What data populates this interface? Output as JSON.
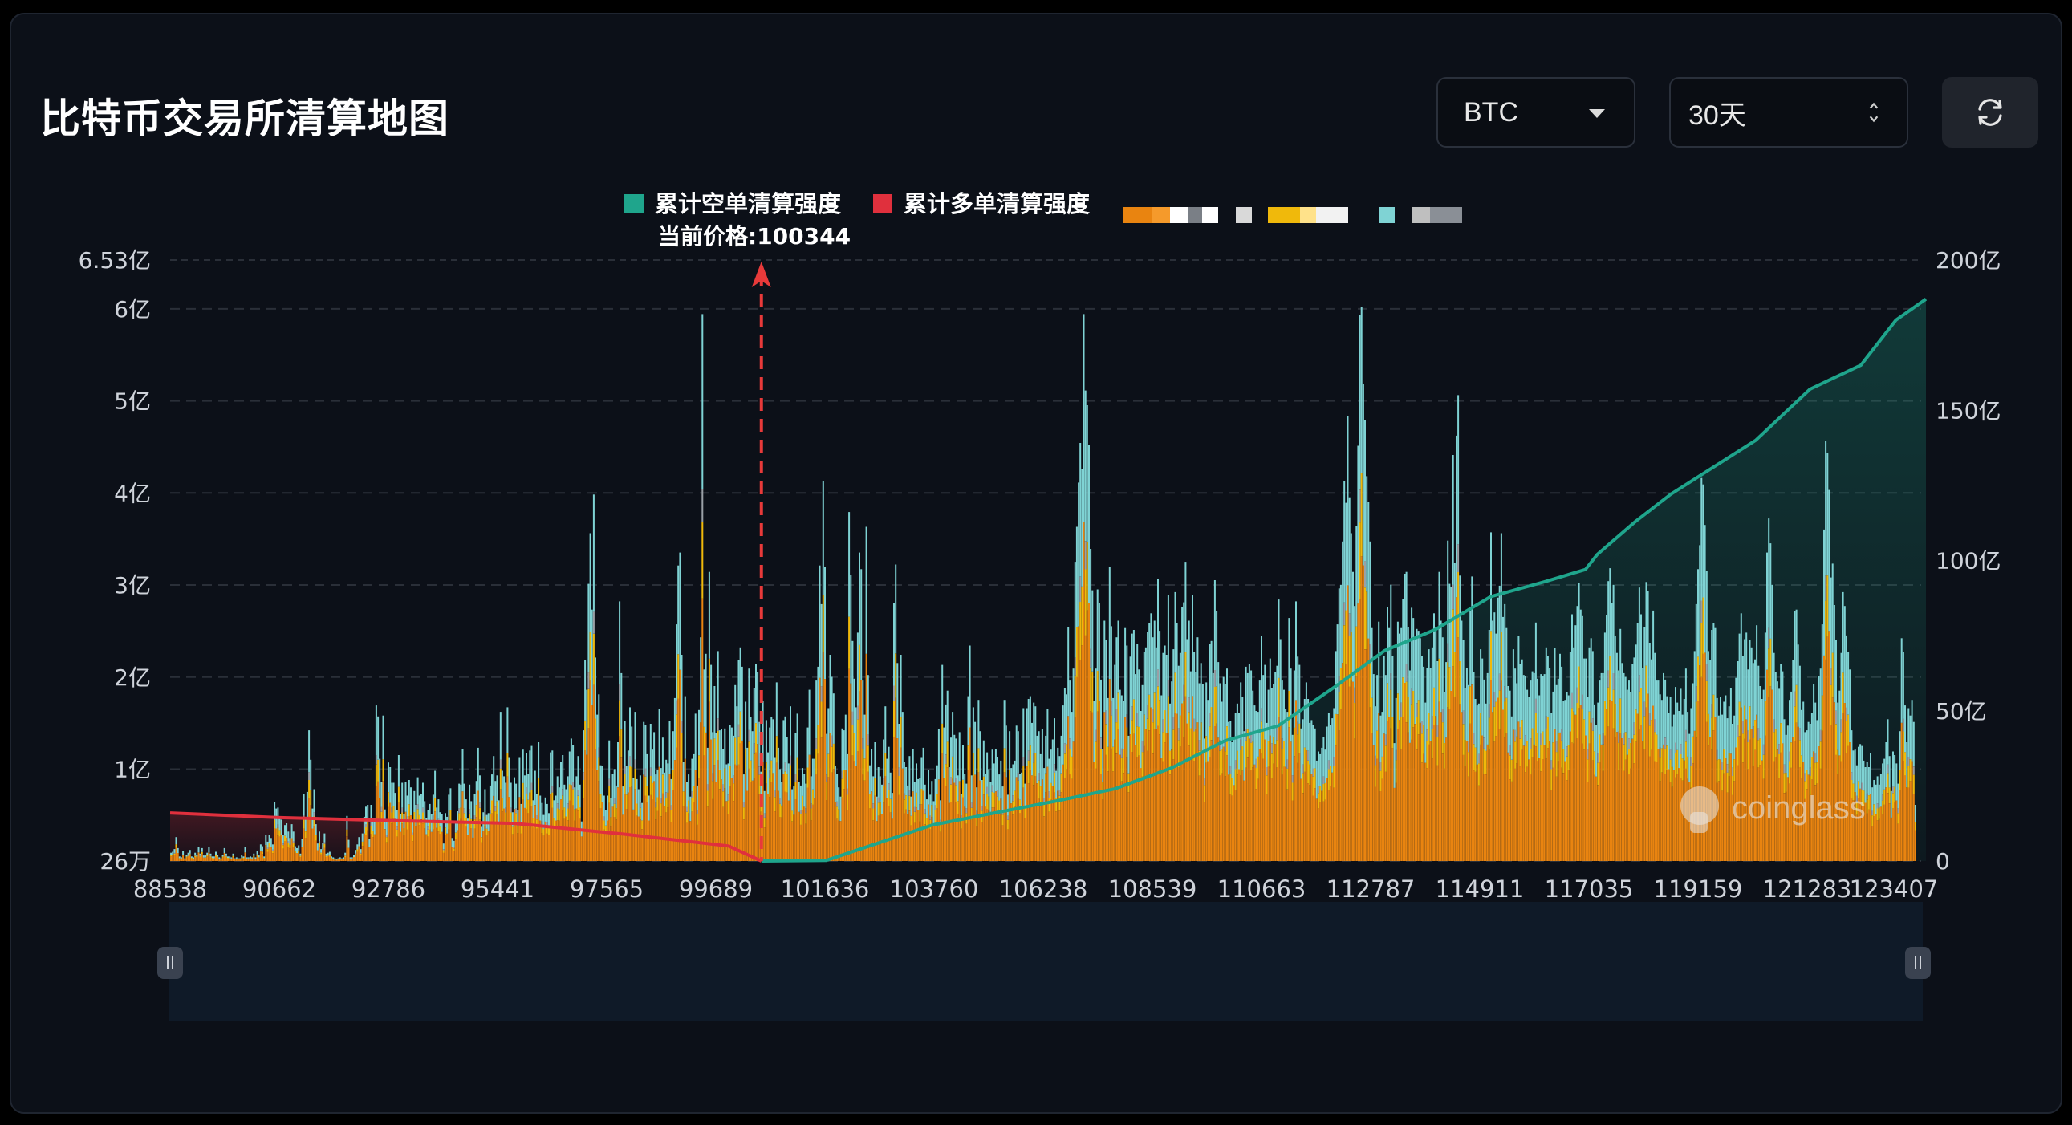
{
  "title": "比特币交易所清算地图",
  "controls": {
    "coin": "BTC",
    "range": "30天"
  },
  "icons": {
    "coin_caret": "chevron-down-icon",
    "range_spinner": "up-down-icon",
    "refresh": "refresh-icon"
  },
  "colors": {
    "background": "#0c1018",
    "short_cumulative": "#1fa58c",
    "long_cumulative": "#e0303d",
    "bar_orange": "#e98410",
    "bar_yellow": "#f0b90b",
    "bar_cyan": "#7fd3d4",
    "bar_gray": "#9aa0a6",
    "current_price_marker": "#e83a3a"
  },
  "chart_data": {
    "type": "bar",
    "legend": {
      "short_label": "累计空单清算强度",
      "long_label": "累计多单清算强度"
    },
    "current_price_label": "当前价格:100344",
    "current_price": 100344,
    "x_ticks": [
      "88538",
      "90662",
      "92786",
      "95441",
      "97565",
      "99689",
      "101636",
      "103760",
      "106238",
      "108539",
      "110663",
      "112787",
      "114911",
      "117035",
      "119159",
      "121283",
      "123407"
    ],
    "x_range": [
      88538,
      123407
    ],
    "y_left": {
      "ticks": [
        "6.53亿",
        "6亿",
        "5亿",
        "4亿",
        "3亿",
        "2亿",
        "1亿",
        "26万"
      ],
      "tick_values": [
        653000000,
        600000000,
        500000000,
        400000000,
        300000000,
        200000000,
        100000000,
        260000
      ],
      "range": [
        260000,
        653000000
      ]
    },
    "y_right": {
      "ticks": [
        "200亿",
        "150亿",
        "100亿",
        "50亿",
        "0"
      ],
      "tick_values": [
        20000000000,
        15000000000,
        10000000000,
        5000000000,
        0
      ],
      "range": [
        0,
        20000000000
      ]
    },
    "watermark": "coinglass",
    "bar_totals_yi": [
      0.09,
      0.1,
      0.13,
      0.26,
      0.14,
      0.05,
      0.04,
      0.11,
      0.03,
      0.07,
      0.09,
      0.12,
      0.05,
      0.04,
      0.09,
      0.07,
      0.15,
      0.08,
      0.14,
      0.06,
      0.06,
      0.09,
      0.15,
      0.08,
      0.05,
      0.05,
      0.1,
      0.07,
      0.04,
      0.03,
      0.07,
      0.14,
      0.08,
      0.05,
      0.05,
      0.04,
      0.08,
      0.03,
      0.04,
      0.03,
      0.03,
      0.06,
      0.05,
      0.15,
      0.04,
      0.04,
      0.05,
      0.04,
      0.08,
      0.04,
      0.11,
      0.06,
      0.18,
      0.16,
      0.05,
      0.28,
      0.21,
      0.28,
      0.25,
      0.18,
      0.64,
      0.57,
      0.58,
      0.48,
      0.45,
      0.28,
      0.39,
      0.41,
      0.32,
      0.25,
      0.4,
      0.32,
      0.16,
      0.14,
      0.17,
      0.08,
      0.24,
      0.73,
      0.46,
      0.75,
      1.42,
      1.1,
      0.57,
      0.78,
      0.4,
      0.19,
      0.32,
      0.13,
      0.2,
      0.3,
      0.08,
      0.09,
      0.1,
      0.05,
      0.04,
      0.03,
      0.02,
      0.03,
      0.04,
      0.03,
      0.04,
      0.09,
      0.49,
      0.23,
      0.04,
      0.04,
      0.07,
      0.12,
      0.18,
      0.26,
      0.13,
      0.3,
      0.48,
      0.59,
      0.61,
      0.24,
      0.61,
      0.47,
      0.47,
      1.69,
      1.57,
      1.11,
      0.86,
      1.58,
      0.56,
      0.42,
      1.07,
      1.02,
      0.85,
      0.85,
      0.74,
      0.55,
      1.15,
      0.51,
      0.85,
      0.51,
      0.86,
      0.71,
      0.88,
      0.8,
      0.45,
      0.76,
      0.61,
      0.91,
      0.71,
      0.73,
      0.85,
      0.65,
      0.47,
      0.55,
      0.62,
      0.51,
      0.72,
      0.98,
      0.58,
      0.67,
      0.53,
      0.51,
      0.19,
      0.52,
      0.48,
      0.72,
      0.79,
      0.25,
      0.22,
      0.44,
      0.54,
      0.84,
      0.83,
      1.22,
      0.84,
      0.67,
      0.46,
      0.83,
      0.65,
      0.41,
      0.73,
      0.87,
      1.23,
      0.93,
      0.37,
      0.53,
      0.78,
      0.5,
      0.52,
      0.82,
      0.94,
      1.14,
      0.87,
      0.93,
      0.66,
      1.62,
      0.98,
      0.92,
      0.85,
      1.67,
      1.12,
      0.85,
      0.53,
      0.91,
      0.84,
      0.55,
      1.12,
      0.62,
      1.21,
      0.93,
      1.17,
      0.95,
      1.2,
      1.25,
      0.66,
      0.98,
      0.73,
      1.29,
      0.71,
      0.63,
      0.5,
      0.69,
      0.62,
      0.52,
      1.18,
      1.2,
      0.66,
      0.71,
      0.92,
      0.8,
      1.08,
      1.15,
      0.83,
      0.78,
      0.92,
      1.19,
      1.33,
      1.26,
      0.8,
      0.92,
      1.14,
      0.83,
      0.43,
      1.42,
      2.18,
      1.86,
      3.01,
      3.56,
      2.73,
      3.98,
      2.21,
      1.59,
      1.81,
      1.04,
      1.03,
      0.71,
      0.55,
      0.71,
      1.31,
      0.68,
      0.95,
      1.0,
      0.82,
      1.29,
      2.82,
      2.04,
      0.81,
      1.52,
      1.03,
      1.2,
      1.67,
      1.46,
      0.9,
      1.62,
      0.89,
      0.78,
      0.93,
      0.63,
      1.51,
      1.48,
      1.16,
      0.71,
      1.49,
      1.21,
      1.4,
      0.94,
      0.99,
      1.65,
      1.01,
      1.34,
      0.96,
      1.1,
      1.06,
      1.52,
      0.89,
      1.41,
      1.77,
      2.57,
      3.21,
      3.35,
      2.24,
      1.08,
      1.79,
      0.86,
      0.94,
      0.7,
      1.11,
      1.16,
      1.6,
      0.82,
      1.64,
      2.43,
      5.94,
      2.08,
      2.25,
      1.23,
      3.14,
      2.13,
      1.4,
      1.9,
      1.39,
      2.28,
      1.42,
      1.43,
      1.22,
      1.44,
      1.05,
      1.06,
      1.48,
      1.45,
      1.36,
      1.91,
      1.68,
      2.18,
      2.32,
      2.11,
      0.94,
      1.73,
      1.23,
      2.09,
      1.56,
      1.41,
      1.88,
      2.14,
      2.05,
      1.51,
      0.97,
      1.74,
      0.76,
      1.53,
      1.18,
      1.45,
      1.56,
      1.54,
      1.12,
      1.94,
      1.23,
      1.0,
      0.86,
      1.53,
      1.57,
      1.35,
      1.06,
      1.68,
      0.78,
      0.81,
      1.39,
      1.6,
      0.86,
      0.82,
      1.01,
      0.95,
      0.84,
      1.45,
      1.86,
      0.92,
      1.11,
      1.11,
      1.96,
      2.11,
      3.21,
      2.79,
      4.13,
      3.19,
      1.38,
      1.66,
      2.24,
      2.0,
      1.82,
      1.03,
      0.95,
      0.8,
      0.7,
      1.44,
      1.42,
      1.59,
      1.16,
      3.79,
      3.11,
      2.39,
      1.98,
      1.67,
      2.48,
      3.35,
      3.17,
      1.96,
      1.59,
      3.63,
      2.02,
      1.04,
      1.22,
      0.92,
      1.29,
      0.7,
      1.02,
      0.92,
      0.83,
      1.32,
      1.68,
      1.11,
      1.24,
      0.96,
      0.74,
      2.8,
      3.22,
      2.15,
      1.49,
      2.24,
      1.62,
      1.08,
      1.02,
      0.82,
      1.14,
      0.7,
      1.22,
      0.86,
      1.06,
      0.89,
      0.9,
      1.12,
      1.23,
      0.83,
      0.67,
      0.99,
      0.72,
      0.87,
      0.65,
      0.89,
      1.04,
      1.43,
      0.66,
      2.13,
      1.45,
      1.7,
      1.85,
      1.02,
      1.34,
      1.62,
      1.37,
      1.33,
      0.93,
      1.4,
      0.73,
      1.26,
      0.95,
      0.84,
      1.79,
      2.34,
      0.93,
      1.67,
      1.51,
      0.8,
      1.75,
      1.41,
      0.88,
      1.31,
      0.95,
      1.18,
      1.0,
      0.86,
      1.21,
      1.06,
      1.22,
      1.13,
      0.94,
      1.09,
      0.81,
      1.75,
      1.47,
      0.72,
      1.41,
      1.01,
      1.05,
      1.09,
      1.47,
      1.41,
      0.95,
      0.96,
      1.66,
      0.84,
      1.66,
      1.76,
      1.79,
      1.5,
      1.72,
      1.68,
      1.36,
      1.41,
      1.16,
      1.43,
      1.01,
      1.36,
      1.65,
      1.11,
      1.21,
      1.32,
      1.55,
      0.98,
      1.23,
      1.14,
      1.36,
      1.69,
      1.88,
      1.81,
      2.54,
      1.96,
      1.62,
      2.09,
      3.25,
      3.63,
      4.11,
      4.54,
      4.26,
      5.94,
      5.11,
      4.95,
      4.52,
      3.39,
      2.94,
      1.74,
      2.09,
      2.95,
      2.8,
      1.97,
      1.22,
      2.61,
      2.4,
      1.77,
      3.19,
      2.55,
      1.77,
      2.13,
      2.43,
      2.61,
      1.86,
      1.8,
      1.74,
      2.53,
      2.34,
      1.36,
      2.22,
      2.47,
      2.51,
      2.03,
      2.36,
      2.08,
      1.63,
      1.91,
      2.27,
      2.32,
      2.49,
      2.58,
      2.69,
      2.43,
      2.61,
      2.32,
      3.06,
      2.5,
      1.8,
      2.26,
      2.34,
      2.24,
      2.89,
      1.71,
      1.95,
      2.3,
      2.92,
      2.58,
      2.12,
      2.26,
      2.76,
      2.81,
      3.25,
      2.41,
      2.61,
      2.06,
      2.89,
      2.27,
      2.05,
      2.43,
      1.93,
      2.15,
      1.92,
      1.33,
      1.94,
      1.75,
      2.36,
      2.39,
      2.04,
      3.05,
      2.71,
      2.16,
      1.93,
      1.73,
      2.0,
      1.92,
      2.09,
      1.51,
      1.52,
      1.29,
      1.33,
      1.61,
      1.71,
      1.61,
      1.94,
      1.78,
      1.41,
      2.11,
      2.04,
      2.14,
      2.07,
      1.85,
      1.69,
      1.63,
      1.62,
      1.96,
      2.44,
      2.02,
      2.13,
      1.5,
      1.86,
      2.2,
      1.88,
      1.92,
      2.05,
      2.12,
      2.84,
      2.41,
      1.96,
      1.86,
      1.65,
      1.62,
      2.64,
      2.09,
      1.37,
      2.07,
      2.82,
      2.22,
      2.13,
      1.44,
      1.54,
      1.76,
      1.94,
      1.76,
      1.5,
      1.53,
      1.48,
      1.44,
      1.09,
      1.19,
      1.16,
      1.23,
      1.35,
      1.21,
      1.46,
      1.61,
      1.48,
      1.55,
      1.66,
      2.28,
      2.57,
      2.96,
      3.0,
      3.47,
      4.13,
      3.89,
      4.83,
      3.95,
      3.56,
      3.14,
      2.77,
      3.64,
      4.51,
      5.93,
      6.02,
      5.18,
      4.79,
      4.18,
      3.9,
      3.47,
      2.53,
      2.03,
      1.68,
      2.02,
      2.6,
      1.58,
      1.62,
      2.23,
      2.02,
      2.76,
      2.53,
      3.0,
      2.23,
      1.28,
      1.77,
      2.6,
      2.47,
      2.53,
      2.85,
      3.12,
      3.14,
      2.54,
      2.07,
      2.75,
      2.64,
      2.4,
      2.52,
      2.5,
      2.42,
      2.23,
      2.11,
      1.72,
      2.1,
      2.3,
      2.1,
      2.32,
      2.69,
      2.54,
      2.17,
      3.14,
      2.61,
      2.43,
      1.83,
      2.16,
      3.48,
      3.01,
      2.98,
      4.41,
      3.24,
      4.62,
      5.06,
      3.1,
      2.61,
      2.4,
      1.88,
      2.1,
      1.91,
      2.71,
      3.09,
      2.05,
      1.76,
      1.69,
      1.71,
      2.3,
      2.2,
      1.97,
      1.71,
      2.04,
      2.51,
      3.57,
      2.61,
      2.7,
      2.47,
      2.86,
      2.99,
      3.56,
      2.65,
      2.79,
      2.53,
      1.9,
      1.85,
      1.57,
      2.3,
      2.09,
      1.93,
      2.44,
      2.14,
      2.19,
      2.02,
      2.01,
      1.86,
      1.78,
      1.96,
      2.06,
      2.04,
      2.59,
      1.98,
      1.8,
      2.03,
      2.01,
      2.03,
      2.32,
      2.23,
      2.1,
      1.61,
      1.84,
      2.31,
      1.91,
      1.98,
      2.25,
      2.11,
      1.74,
      1.75,
      1.83,
      1.8,
      2.27,
      2.68,
      2.32,
      2.56,
      2.77,
      3.02,
      2.73,
      2.66,
      2.2,
      2.2,
      1.78,
      2.32,
      2.42,
      2.28,
      1.7,
      1.48,
      1.72,
      1.96,
      2.04,
      2.04,
      2.48,
      2.67,
      3.04,
      3.18,
      2.8,
      3.0,
      2.44,
      2.26,
      2.07,
      2.52,
      2.15,
      2.04,
      2.0,
      1.86,
      1.96,
      1.83,
      2.14,
      2.21,
      2.35,
      2.58,
      2.97,
      2.68,
      2.1,
      2.54,
      3.03,
      2.93,
      2.37,
      2.19,
      2.72,
      2.26,
      1.96,
      1.96,
      1.81,
      1.75,
      2.04,
      1.97,
      1.79,
      1.61,
      1.78,
      1.46,
      1.59,
      1.89,
      1.72,
      1.63,
      1.87,
      1.59,
      1.76,
      2.09,
      1.62,
      1.38,
      1.66,
      1.93,
      2.28,
      2.79,
      3.17,
      3.43,
      4.16,
      4.09,
      3.65,
      3.15,
      2.28,
      2.18,
      2.51,
      2.58,
      2.53,
      1.77,
      1.58,
      1.78,
      1.59,
      1.73,
      1.8,
      1.55,
      1.68,
      1.88,
      1.49,
      1.58,
      1.99,
      2.17,
      2.47,
      2.69,
      2.23,
      2.41,
      2.48,
      2.08,
      2.4,
      2.32,
      2.15,
      2.19,
      2.56,
      2.12,
      1.9,
      1.76,
      1.86,
      2.48,
      3.35,
      3.72,
      3.45,
      3.0,
      2.26,
      2.05,
      1.95,
      1.87,
      2.14,
      2.06,
      1.54,
      1.37,
      1.47,
      1.75,
      1.84,
      2.18,
      2.71,
      2.73,
      2.35,
      2.12,
      1.64,
      1.73,
      1.4,
      1.42,
      1.51,
      1.49,
      1.61,
      1.92,
      1.72,
      1.53,
      2.01,
      2.09,
      2.57,
      3.6,
      4.56,
      4.43,
      4.03,
      3.08,
      3.23,
      2.78,
      2.4,
      1.72,
      1.85,
      2.26,
      2.92,
      2.77,
      2.45,
      2.27,
      2.08,
      1.42,
      1.2,
      1.21,
      1.04,
      1.24,
      1.27,
      1.25,
      1.09,
      1.02,
      1.08,
      1.02,
      1.17,
      0.8,
      0.88,
      0.83,
      0.92,
      0.83,
      0.95,
      1.06,
      1.11,
      1.29,
      1.54,
      1.14,
      0.76,
      1.19,
      1.15,
      1.06,
      0.84,
      1.41,
      2.42,
      2.27,
      1.69,
      1.29,
      1.66,
      1.58,
      1.75,
      1.51,
      0.61
    ],
    "short_cumulative_yi": [
      [
        100344,
        0
      ],
      [
        101636,
        0.2
      ],
      [
        102500,
        5
      ],
      [
        103760,
        12
      ],
      [
        105000,
        16
      ],
      [
        106238,
        20
      ],
      [
        107400,
        24
      ],
      [
        108539,
        31
      ],
      [
        109600,
        40
      ],
      [
        110663,
        45
      ],
      [
        111800,
        58
      ],
      [
        112787,
        70
      ],
      [
        113800,
        77
      ],
      [
        114911,
        88
      ],
      [
        116000,
        93
      ],
      [
        116800,
        97
      ],
      [
        117035,
        102
      ],
      [
        117800,
        113
      ],
      [
        118500,
        122
      ],
      [
        119159,
        129
      ],
      [
        120200,
        140
      ],
      [
        121283,
        157
      ],
      [
        122300,
        165
      ],
      [
        123000,
        180
      ],
      [
        123600,
        187
      ]
    ],
    "long_cumulative_yi": [
      [
        88538,
        16
      ],
      [
        90662,
        14.5
      ],
      [
        92786,
        13.5
      ],
      [
        95441,
        12.5
      ],
      [
        97565,
        9
      ],
      [
        99689,
        5
      ],
      [
        100344,
        0
      ]
    ]
  }
}
